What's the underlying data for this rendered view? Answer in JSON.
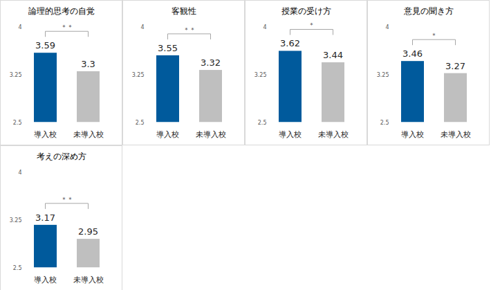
{
  "chart_data": [
    {
      "type": "bar",
      "title": "論理的思考の自覚",
      "categories": [
        "導入校",
        "未導入校"
      ],
      "values": [
        3.59,
        3.3
      ],
      "colors": [
        "#005a9c",
        "#bfbfbf"
      ],
      "ylim": [
        2.5,
        4
      ],
      "yticks": [
        2.5,
        3.25,
        4
      ],
      "data_labels": true,
      "annotation": "＊＊"
    },
    {
      "type": "bar",
      "title": "客観性",
      "categories": [
        "導入校",
        "未導入校"
      ],
      "values": [
        3.55,
        3.32
      ],
      "colors": [
        "#005a9c",
        "#bfbfbf"
      ],
      "ylim": [
        2.5,
        4
      ],
      "yticks": [
        2.5,
        3.25,
        4
      ],
      "data_labels": true,
      "annotation": "＊＊"
    },
    {
      "type": "bar",
      "title": "授業の受け方",
      "categories": [
        "導入校",
        "未導入校"
      ],
      "values": [
        3.62,
        3.44
      ],
      "colors": [
        "#005a9c",
        "#bfbfbf"
      ],
      "ylim": [
        2.5,
        4
      ],
      "yticks": [
        2.5,
        3.25,
        4
      ],
      "data_labels": true,
      "annotation": "＊"
    },
    {
      "type": "bar",
      "title": "意見の聞き方",
      "categories": [
        "導入校",
        "未導入校"
      ],
      "values": [
        3.46,
        3.27
      ],
      "colors": [
        "#005a9c",
        "#bfbfbf"
      ],
      "ylim": [
        2.5,
        4
      ],
      "yticks": [
        2.5,
        3.25,
        4
      ],
      "data_labels": true,
      "annotation": "＊"
    },
    {
      "type": "bar",
      "title": "考えの深め方",
      "categories": [
        "導入校",
        "未導入校"
      ],
      "values": [
        3.17,
        2.95
      ],
      "colors": [
        "#005a9c",
        "#bfbfbf"
      ],
      "ylim": [
        2.5,
        4
      ],
      "yticks": [
        2.5,
        3.25,
        4
      ],
      "data_labels": true,
      "annotation": "＊＊"
    }
  ]
}
